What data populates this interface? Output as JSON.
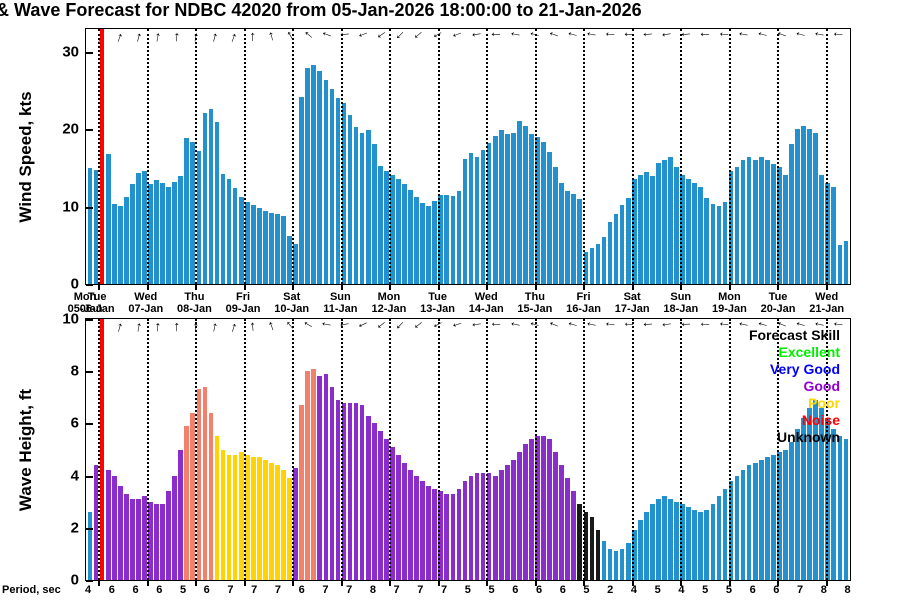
{
  "title": {
    "text": "& Wave Forecast for NDBC 42020 from 05-Jan-2026 18:00:00 to 21-Jan-2026"
  },
  "colors": {
    "now_line": "#ff0000",
    "grid_line": "#000000",
    "wind_bar": "#2491cf"
  },
  "skill_colors": {
    "vg": "#2491cf",
    "g": "#8a2dcb",
    "p": "#ffd400",
    "n": "#f2806a",
    "u": "#1a1a1a"
  },
  "legend": {
    "items": [
      {
        "label": "Forecast Skill",
        "color": "#000000"
      },
      {
        "label": "Excellent",
        "color": "#00ee00"
      },
      {
        "label": "Very Good",
        "color": "#0000ff"
      },
      {
        "label": "Good",
        "color": "#9400d3"
      },
      {
        "label": "Poor",
        "color": "#ffd700"
      },
      {
        "label": "Noise",
        "color": "#ff0000"
      },
      {
        "label": "Unknown",
        "color": "#000000"
      }
    ]
  },
  "chart_data": {
    "type": "bar",
    "station": "NDBC 42020",
    "time_range": "05-Jan-2026 18:00:00 to 21-Jan-2026",
    "charts": [
      {
        "id": "wind",
        "title": "Wind Speed, kts",
        "ylim": [
          0,
          33
        ],
        "yticks": [
          0,
          10,
          20,
          30
        ],
        "values": [
          15.0,
          14.7,
          18.0,
          16.8,
          10.4,
          10.1,
          11.3,
          12.9,
          14.4,
          14.6,
          13.0,
          13.4,
          13.1,
          12.6,
          13.2,
          14.0,
          18.9,
          18.4,
          17.2,
          22.1,
          22.6,
          21.0,
          14.2,
          13.6,
          12.4,
          11.2,
          10.6,
          10.2,
          9.8,
          9.4,
          9.2,
          9.0,
          8.8,
          6.2,
          5.2,
          24.2,
          27.9,
          28.4,
          27.6,
          26.4,
          25.2,
          24.1,
          23.4,
          21.9,
          20.3,
          19.6,
          19.9,
          18.1,
          15.3,
          14.6,
          14.1,
          13.6,
          13.0,
          12.2,
          11.3,
          10.5,
          10.1,
          10.8,
          11.5,
          11.5,
          11.4,
          12.0,
          16.2,
          17.0,
          16.4,
          17.4,
          18.2,
          19.1,
          19.9,
          19.4,
          19.5,
          21.1,
          20.4,
          19.4,
          19.0,
          18.4,
          17.1,
          15.2,
          13.1,
          12.0,
          11.6,
          11.0,
          4.1,
          4.6,
          5.2,
          6.1,
          8.0,
          9.1,
          10.2,
          11.1,
          13.6,
          14.1,
          14.5,
          14.0,
          15.6,
          16.1,
          16.4,
          15.1,
          14.1,
          13.6,
          13.1,
          12.5,
          11.1,
          10.4,
          10.1,
          10.6,
          14.6,
          15.1,
          16.0,
          16.5,
          16.1,
          16.4,
          16.0,
          15.5,
          15.1,
          14.1,
          18.1,
          20.1,
          20.4,
          20.1,
          19.5,
          14.1,
          13.1,
          12.6,
          5.1,
          5.6
        ]
      },
      {
        "id": "wave",
        "title": "Wave Height, ft",
        "ylim": [
          0,
          10
        ],
        "yticks": [
          0,
          2,
          4,
          6,
          8,
          10
        ],
        "values": [
          2.6,
          4.4,
          4.3,
          4.2,
          4.0,
          3.6,
          3.3,
          3.1,
          3.1,
          3.2,
          3.0,
          2.9,
          2.9,
          3.4,
          4.0,
          5.0,
          5.9,
          6.4,
          7.3,
          7.4,
          6.4,
          5.5,
          5.0,
          4.8,
          4.8,
          4.9,
          4.8,
          4.7,
          4.7,
          4.6,
          4.5,
          4.4,
          4.2,
          3.9,
          4.3,
          6.7,
          8.0,
          8.1,
          7.8,
          7.9,
          7.4,
          6.9,
          6.8,
          6.8,
          6.8,
          6.7,
          6.3,
          6.0,
          5.7,
          5.4,
          5.1,
          4.8,
          4.5,
          4.2,
          4.0,
          3.8,
          3.6,
          3.5,
          3.4,
          3.3,
          3.3,
          3.5,
          3.8,
          4.0,
          4.1,
          4.1,
          4.1,
          4.0,
          4.2,
          4.4,
          4.6,
          4.9,
          5.2,
          5.4,
          5.5,
          5.5,
          5.4,
          4.9,
          4.4,
          3.9,
          3.4,
          2.9,
          2.6,
          2.4,
          1.9,
          1.5,
          1.2,
          1.1,
          1.2,
          1.4,
          1.9,
          2.3,
          2.6,
          2.9,
          3.1,
          3.2,
          3.1,
          3.0,
          2.9,
          2.8,
          2.7,
          2.6,
          2.7,
          2.9,
          3.2,
          3.5,
          3.8,
          4.0,
          4.2,
          4.4,
          4.5,
          4.6,
          4.7,
          4.8,
          4.9,
          5.0,
          5.3,
          5.8,
          6.2,
          6.6,
          6.9,
          6.6,
          6.2,
          5.8,
          5.5,
          5.4
        ],
        "skills": [
          "vg",
          "g",
          "g",
          "g",
          "g",
          "g",
          "g",
          "g",
          "g",
          "g",
          "g",
          "g",
          "g",
          "g",
          "g",
          "g",
          "n",
          "n",
          "n",
          "n",
          "n",
          "p",
          "p",
          "p",
          "p",
          "p",
          "p",
          "p",
          "p",
          "p",
          "p",
          "p",
          "p",
          "p",
          "g",
          "n",
          "n",
          "n",
          "g",
          "g",
          "g",
          "g",
          "g",
          "g",
          "g",
          "g",
          "g",
          "g",
          "g",
          "g",
          "g",
          "g",
          "g",
          "g",
          "g",
          "g",
          "g",
          "g",
          "g",
          "g",
          "g",
          "g",
          "g",
          "g",
          "g",
          "g",
          "g",
          "g",
          "g",
          "g",
          "g",
          "g",
          "g",
          "g",
          "g",
          "g",
          "g",
          "g",
          "g",
          "g",
          "g",
          "u",
          "u",
          "u",
          "u",
          "vg",
          "vg",
          "vg",
          "vg",
          "vg",
          "vg",
          "vg",
          "vg",
          "vg",
          "vg",
          "vg",
          "vg",
          "vg",
          "vg",
          "vg",
          "vg",
          "vg",
          "vg",
          "vg",
          "vg",
          "vg",
          "vg",
          "vg",
          "vg",
          "vg",
          "vg",
          "vg",
          "vg",
          "vg",
          "vg",
          "vg",
          "vg",
          "vg",
          "vg",
          "vg",
          "vg",
          "vg",
          "vg",
          "vg",
          "vg",
          "vg"
        ]
      }
    ],
    "x_axis": {
      "total_slots": 126,
      "now_line_pos": 2.3,
      "day_positions": [
        0,
        2,
        10,
        18,
        26,
        34,
        42,
        50,
        58,
        66,
        74,
        82,
        90,
        98,
        106,
        114,
        122
      ],
      "day_labels": [
        [
          "Mon",
          "05-Jan"
        ],
        [
          "Tue",
          "06-Jan"
        ],
        [
          "Wed",
          "07-Jan"
        ],
        [
          "Thu",
          "08-Jan"
        ],
        [
          "Fri",
          "09-Jan"
        ],
        [
          "Sat",
          "10-Jan"
        ],
        [
          "Sun",
          "11-Jan"
        ],
        [
          "Mon",
          "12-Jan"
        ],
        [
          "Tue",
          "13-Jan"
        ],
        [
          "Wed",
          "14-Jan"
        ],
        [
          "Thu",
          "15-Jan"
        ],
        [
          "Fri",
          "16-Jan"
        ],
        [
          "Sat",
          "17-Jan"
        ],
        [
          "Sun",
          "18-Jan"
        ],
        [
          "Mon",
          "19-Jan"
        ],
        [
          "Tue",
          "20-Jan"
        ],
        [
          "Wed",
          "21-Jan"
        ]
      ]
    },
    "period": {
      "label": "Period, sec",
      "values": [
        4,
        6,
        6,
        6,
        5,
        6,
        7,
        7,
        7,
        6,
        7,
        7,
        8,
        7,
        7,
        7,
        5,
        5,
        6,
        6,
        6,
        5,
        2,
        4,
        5,
        4,
        5,
        5,
        6,
        6,
        7,
        8,
        8
      ]
    },
    "wind_arrows_deg": [
      -65,
      -70,
      -75,
      -80,
      -85,
      -80,
      -75,
      -70,
      -90,
      -105,
      -120,
      -140,
      -160,
      175,
      160,
      145,
      135,
      140,
      150,
      160,
      170,
      180,
      190,
      195,
      200,
      195,
      190,
      185,
      180,
      175,
      170,
      175,
      180,
      185,
      190,
      195,
      200,
      195,
      190,
      185
    ],
    "wave_arrows_deg": [
      -70,
      -75,
      -80,
      -85,
      -88,
      -84,
      -78,
      -72,
      -95,
      -110,
      -130,
      -150,
      -170,
      170,
      155,
      142,
      133,
      142,
      152,
      162,
      172,
      182,
      192,
      197,
      202,
      197,
      192,
      187,
      182,
      177,
      172,
      177,
      182,
      187,
      192,
      197,
      202,
      197,
      192,
      187
    ]
  }
}
